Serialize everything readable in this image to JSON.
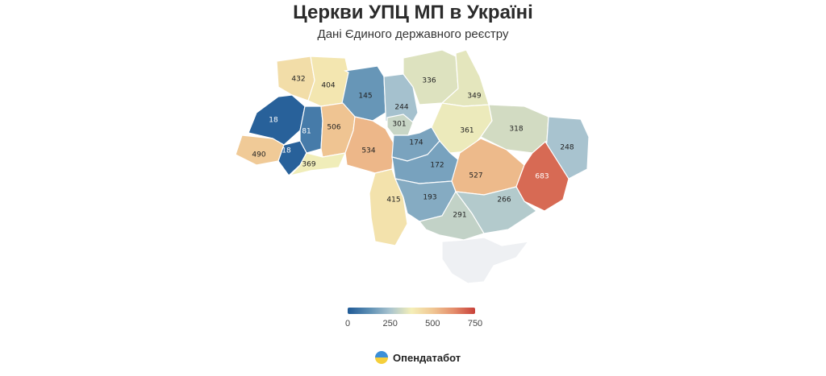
{
  "title": "Церкви УПЦ МП в Україні",
  "subtitle": "Дані Єдиного державного реєстру",
  "legend": {
    "ticks": [
      "0",
      "250",
      "500",
      "750"
    ],
    "min": 0,
    "max": 750,
    "colors": [
      "#1f5a96",
      "#5b8db3",
      "#a9c4cf",
      "#f4efb8",
      "#f0c794",
      "#e48d6b",
      "#c8413a"
    ]
  },
  "brand": {
    "name": "Опендатабот",
    "logo_icon": "opendatabot-logo-icon"
  },
  "regions": [
    {
      "name": "Volyn",
      "value": 432
    },
    {
      "name": "Rivne",
      "value": 404
    },
    {
      "name": "Zhytomyr",
      "value": 145
    },
    {
      "name": "Kyiv-oblast",
      "value": 244
    },
    {
      "name": "Kyiv-city",
      "value": 301
    },
    {
      "name": "Chernihiv",
      "value": 336
    },
    {
      "name": "Sumy",
      "value": 349
    },
    {
      "name": "Lviv",
      "value": 18
    },
    {
      "name": "Ternopil",
      "value": 81
    },
    {
      "name": "Khmelnytskyi",
      "value": 506
    },
    {
      "name": "Zakarpattia",
      "value": 490
    },
    {
      "name": "Ivano-Frankivsk",
      "value": 18
    },
    {
      "name": "Chernivtsi",
      "value": 369
    },
    {
      "name": "Vinnytsia",
      "value": 534
    },
    {
      "name": "Cherkasy",
      "value": 174
    },
    {
      "name": "Poltava",
      "value": 361
    },
    {
      "name": "Kharkiv",
      "value": 318
    },
    {
      "name": "Luhansk",
      "value": 248
    },
    {
      "name": "Kirovohrad",
      "value": 172
    },
    {
      "name": "Dnipropetrovsk",
      "value": 527
    },
    {
      "name": "Donetsk",
      "value": 683
    },
    {
      "name": "Odesa",
      "value": 415
    },
    {
      "name": "Mykolaiv",
      "value": 193
    },
    {
      "name": "Zaporizhzhia",
      "value": 266
    },
    {
      "name": "Kherson",
      "value": 291
    },
    {
      "name": "Crimea",
      "value": null
    }
  ]
}
